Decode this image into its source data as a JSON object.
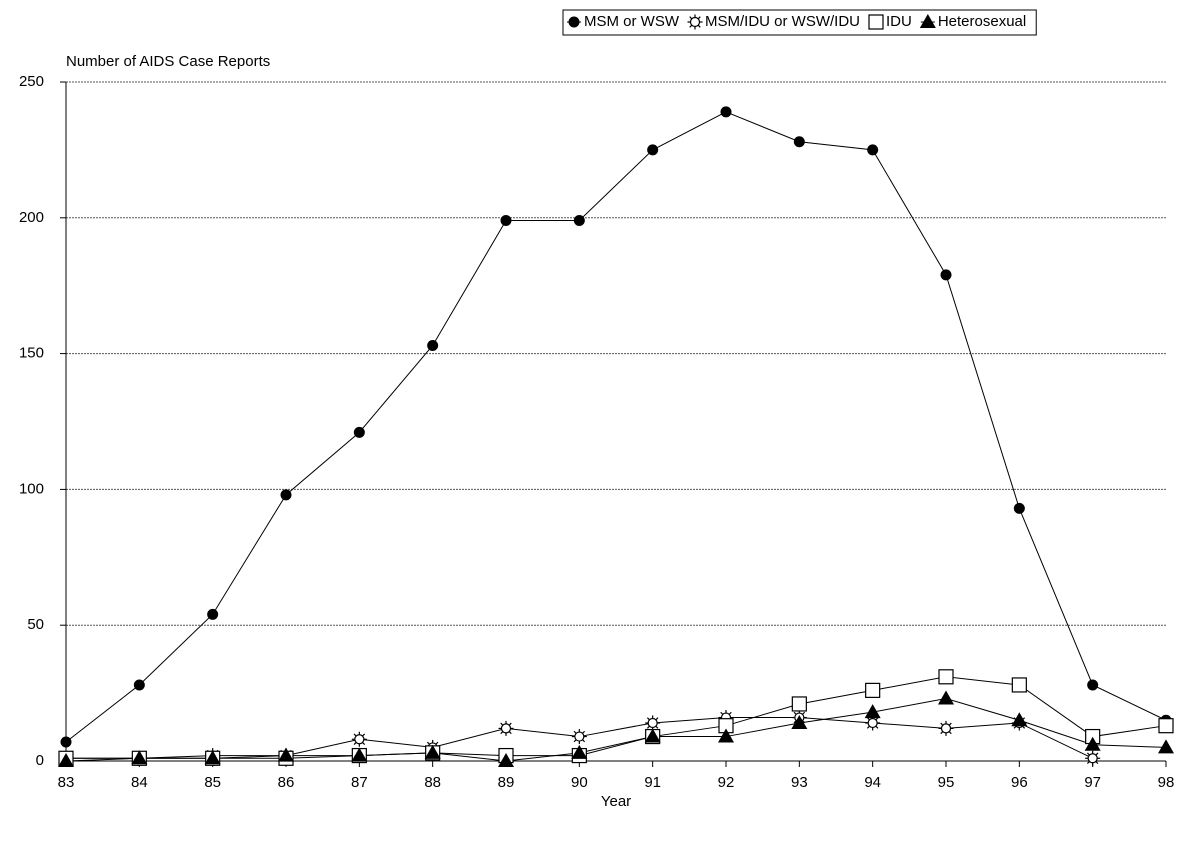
{
  "chart_data": {
    "type": "line",
    "y_label": "Number of AIDS Case Reports",
    "x_label": "Year",
    "categories": [
      "83",
      "84",
      "85",
      "86",
      "87",
      "88",
      "89",
      "90",
      "91",
      "92",
      "93",
      "94",
      "95",
      "96",
      "97",
      "98"
    ],
    "series": [
      {
        "name": "MSM or WSW",
        "color": "#000000",
        "marker": "dot",
        "values": [
          7,
          28,
          54,
          98,
          121,
          153,
          199,
          199,
          225,
          239,
          228,
          225,
          179,
          93,
          28,
          15
        ]
      },
      {
        "name": "MSM/IDU or WSW/IDU",
        "color": "#000000",
        "marker": "sun",
        "values": [
          1,
          1,
          2,
          2,
          8,
          5,
          12,
          9,
          14,
          16,
          16,
          14,
          12,
          14,
          1,
          null
        ]
      },
      {
        "name": "IDU",
        "color": "#000000",
        "marker": "square",
        "values": [
          1,
          1,
          1,
          1,
          2,
          3,
          2,
          2,
          9,
          13,
          21,
          26,
          31,
          28,
          9,
          13
        ]
      },
      {
        "name": "Heterosexual",
        "color": "#000000",
        "marker": "triangle",
        "values": [
          0,
          1,
          1,
          2,
          2,
          3,
          0,
          3,
          9,
          9,
          14,
          18,
          23,
          15,
          6,
          5
        ]
      }
    ],
    "ylim": [
      0,
      250
    ],
    "yticks": [
      0,
      50,
      100,
      150,
      200,
      250
    ],
    "grid": true,
    "legend": "top-right"
  }
}
